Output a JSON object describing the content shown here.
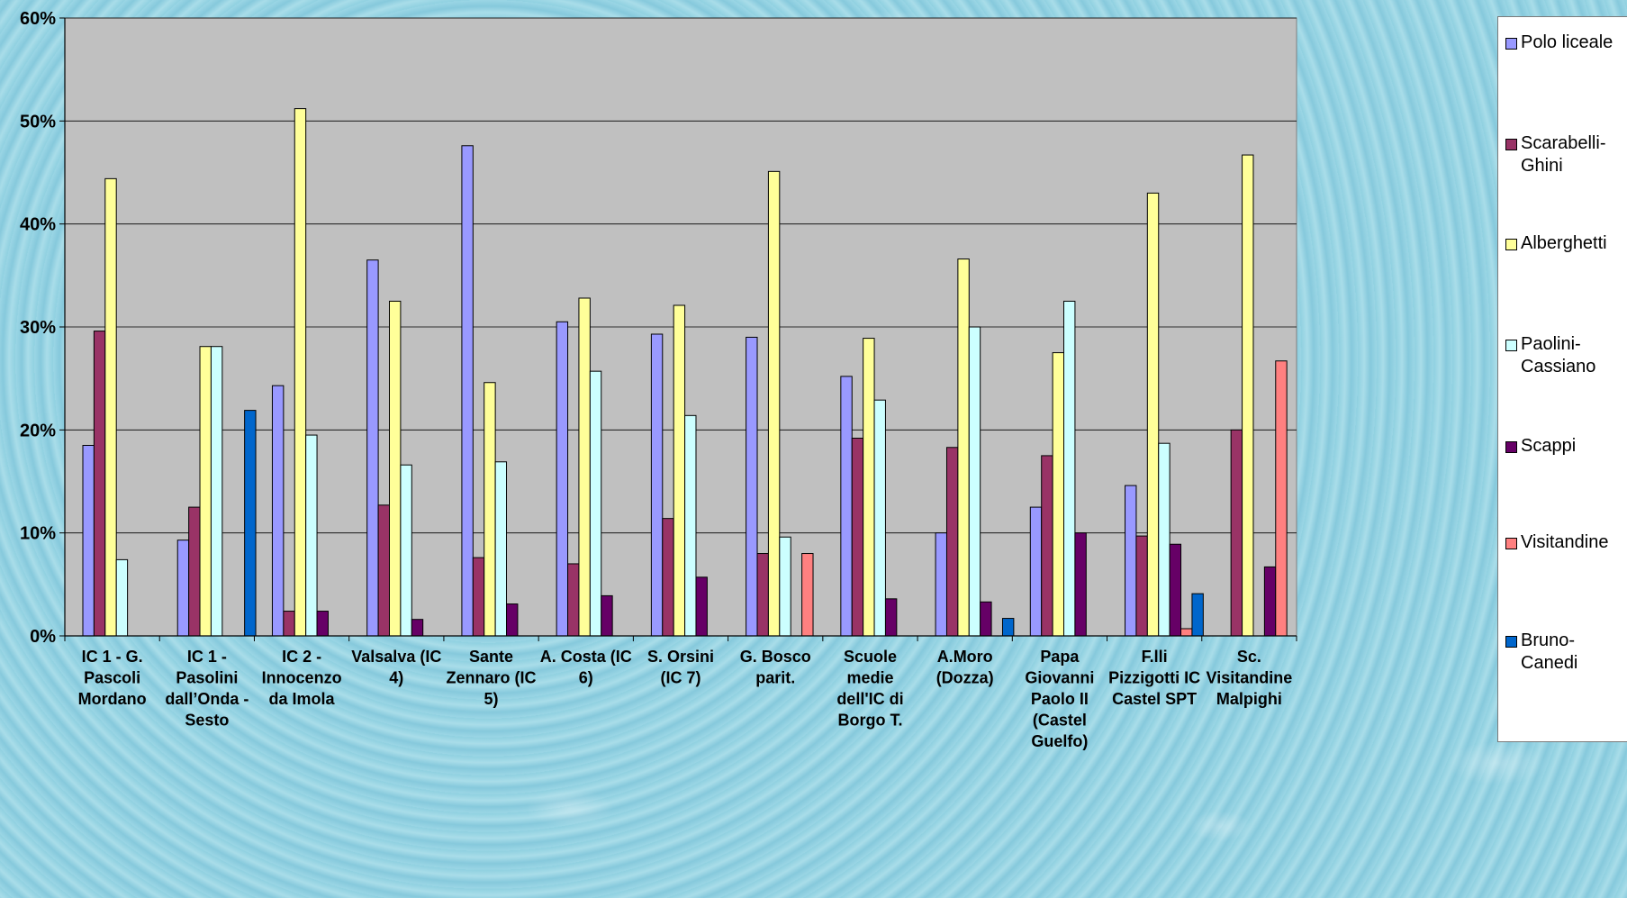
{
  "chart_data": {
    "type": "bar",
    "y_axis": {
      "min": 0,
      "max": 60,
      "step": 10,
      "tick_labels": [
        "0%",
        "10%",
        "20%",
        "30%",
        "40%",
        "50%",
        "60%"
      ]
    },
    "grid": true,
    "legend_position": "right",
    "categories": [
      "IC 1 - G. Pascoli Mordano",
      "IC 1 - Pasolini dall’Onda - Sesto",
      "IC 2 - Innocenzo da Imola",
      "Valsalva (IC 4)",
      "Sante Zennaro (IC 5)",
      "A. Costa (IC 6)",
      "S. Orsini (IC 7)",
      "G. Bosco parit.",
      "Scuole medie dell'IC di Borgo T.",
      "A.Moro (Dozza)",
      "Papa Giovanni Paolo II (Castel Guelfo)",
      "F.lli Pizzigotti IC Castel SPT",
      "Sc. Visitandine Malpighi"
    ],
    "category_lines": [
      [
        "IC 1 - G.",
        "Pascoli",
        "Mordano"
      ],
      [
        "IC 1 -",
        "Pasolini",
        "dall’Onda -",
        "Sesto"
      ],
      [
        "IC 2 -",
        "Innocenzo",
        "da Imola"
      ],
      [
        "Valsalva (IC",
        "4)"
      ],
      [
        "Sante",
        "Zennaro (IC",
        "5)"
      ],
      [
        "A. Costa (IC",
        "6)"
      ],
      [
        "S. Orsini",
        "(IC 7)"
      ],
      [
        "G. Bosco",
        "parit."
      ],
      [
        "Scuole",
        "medie",
        "dell'IC di",
        "Borgo T."
      ],
      [
        "A.Moro",
        "(Dozza)"
      ],
      [
        "Papa",
        "Giovanni",
        "Paolo II",
        "(Castel",
        "Guelfo)"
      ],
      [
        "F.lli",
        "Pizzigotti IC",
        "Castel SPT"
      ],
      [
        "Sc.",
        "Visitandine",
        "Malpighi"
      ]
    ],
    "series": [
      {
        "name": "Polo liceale",
        "color": "#9999ff",
        "values": [
          18.5,
          9.3,
          24.3,
          36.5,
          47.6,
          30.5,
          29.3,
          29.0,
          25.2,
          10.0,
          12.5,
          14.6,
          0
        ]
      },
      {
        "name": "Scarabelli-Ghini",
        "color": "#993366",
        "values": [
          29.6,
          12.5,
          2.4,
          12.7,
          7.6,
          7.0,
          11.4,
          8.0,
          19.2,
          18.3,
          17.5,
          9.7,
          20.0
        ]
      },
      {
        "name": "Alberghetti",
        "color": "#ffff99",
        "values": [
          44.4,
          28.1,
          51.2,
          32.5,
          24.6,
          32.8,
          32.1,
          45.1,
          28.9,
          36.6,
          27.5,
          43.0,
          46.7
        ]
      },
      {
        "name": "Paolini-Cassiano",
        "color": "#ccffff",
        "values": [
          7.4,
          28.1,
          19.5,
          16.6,
          16.9,
          25.7,
          21.4,
          9.6,
          22.9,
          30.0,
          32.5,
          18.7,
          0
        ]
      },
      {
        "name": "Scappi",
        "color": "#660066",
        "values": [
          0,
          0,
          2.4,
          1.6,
          3.1,
          3.9,
          5.7,
          0,
          3.6,
          3.3,
          10.0,
          8.9,
          6.7
        ]
      },
      {
        "name": "Visitandine",
        "color": "#ff8080",
        "values": [
          0,
          0,
          0,
          0,
          0,
          0,
          0,
          8.0,
          0,
          0,
          0,
          0.7,
          26.7
        ]
      },
      {
        "name": "Bruno-Canedi",
        "color": "#0066cc",
        "values": [
          0,
          21.9,
          0,
          0,
          0,
          0,
          0,
          0,
          0,
          1.7,
          0,
          4.1,
          0
        ]
      }
    ]
  }
}
